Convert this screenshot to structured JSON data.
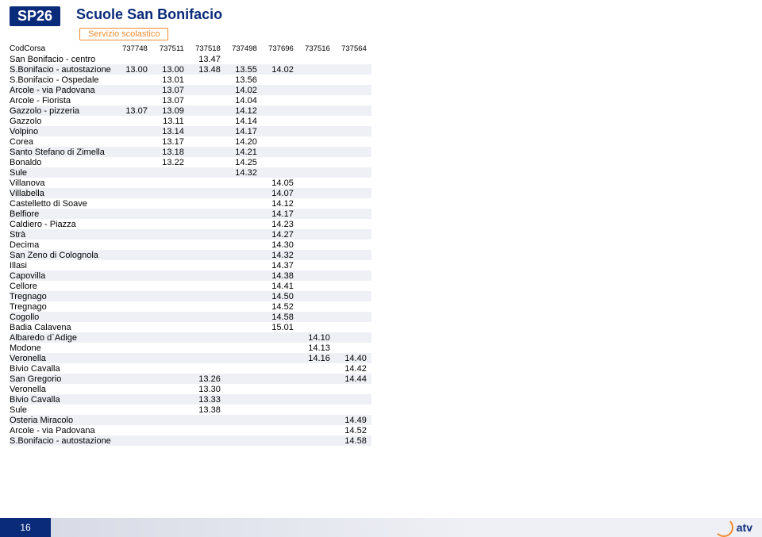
{
  "route_code": "SP26",
  "title": "Scuole San Bonifacio",
  "subtitle": "Servizio scolastico",
  "page_number": "16",
  "logo_text": "atv",
  "codcorsa_label": "CodCorsa",
  "runs": [
    "737748",
    "737511",
    "737518",
    "737498",
    "737696",
    "737516",
    "737564"
  ],
  "stops": [
    {
      "name": "San Bonifacio - centro",
      "t": [
        "",
        "",
        "13.47",
        "",
        "",
        "",
        ""
      ]
    },
    {
      "name": "S.Bonifacio - autostazione",
      "t": [
        "13.00",
        "13.00",
        "13.48",
        "13.55",
        "14.02",
        "",
        ""
      ]
    },
    {
      "name": "S.Bonifacio - Ospedale",
      "t": [
        "",
        "13.01",
        "",
        "13.56",
        "",
        "",
        ""
      ]
    },
    {
      "name": "Arcole - via Padovana",
      "t": [
        "",
        "13.07",
        "",
        "14.02",
        "",
        "",
        ""
      ]
    },
    {
      "name": "Arcole - Fiorista",
      "t": [
        "",
        "13.07",
        "",
        "14.04",
        "",
        "",
        ""
      ]
    },
    {
      "name": "Gazzolo - pizzeria",
      "t": [
        "13.07",
        "13.09",
        "",
        "14.12",
        "",
        "",
        ""
      ]
    },
    {
      "name": "Gazzolo",
      "t": [
        "",
        "13.11",
        "",
        "14.14",
        "",
        "",
        ""
      ]
    },
    {
      "name": "Volpino",
      "t": [
        "",
        "13.14",
        "",
        "14.17",
        "",
        "",
        ""
      ]
    },
    {
      "name": "Corea",
      "t": [
        "",
        "13.17",
        "",
        "14.20",
        "",
        "",
        ""
      ]
    },
    {
      "name": "Santo Stefano di Zimella",
      "t": [
        "",
        "13.18",
        "",
        "14.21",
        "",
        "",
        ""
      ]
    },
    {
      "name": "Bonaldo",
      "t": [
        "",
        "13.22",
        "",
        "14.25",
        "",
        "",
        ""
      ]
    },
    {
      "name": "Sule",
      "t": [
        "",
        "",
        "",
        "14.32",
        "",
        "",
        ""
      ]
    },
    {
      "name": "Villanova",
      "t": [
        "",
        "",
        "",
        "",
        "14.05",
        "",
        ""
      ]
    },
    {
      "name": "Villabella",
      "t": [
        "",
        "",
        "",
        "",
        "14.07",
        "",
        ""
      ]
    },
    {
      "name": "Castelletto di Soave",
      "t": [
        "",
        "",
        "",
        "",
        "14.12",
        "",
        ""
      ]
    },
    {
      "name": "Belfiore",
      "t": [
        "",
        "",
        "",
        "",
        "14.17",
        "",
        ""
      ]
    },
    {
      "name": "Caldiero - Piazza",
      "t": [
        "",
        "",
        "",
        "",
        "14.23",
        "",
        ""
      ]
    },
    {
      "name": "Strà",
      "t": [
        "",
        "",
        "",
        "",
        "14.27",
        "",
        ""
      ]
    },
    {
      "name": "Decima",
      "t": [
        "",
        "",
        "",
        "",
        "14.30",
        "",
        ""
      ]
    },
    {
      "name": "San Zeno di Colognola",
      "t": [
        "",
        "",
        "",
        "",
        "14.32",
        "",
        ""
      ]
    },
    {
      "name": "Illasi",
      "t": [
        "",
        "",
        "",
        "",
        "14.37",
        "",
        ""
      ]
    },
    {
      "name": "Capovilla",
      "t": [
        "",
        "",
        "",
        "",
        "14.38",
        "",
        ""
      ]
    },
    {
      "name": "Cellore",
      "t": [
        "",
        "",
        "",
        "",
        "14.41",
        "",
        ""
      ]
    },
    {
      "name": "Tregnago",
      "t": [
        "",
        "",
        "",
        "",
        "14.50",
        "",
        ""
      ]
    },
    {
      "name": "Tregnago",
      "t": [
        "",
        "",
        "",
        "",
        "14.52",
        "",
        ""
      ]
    },
    {
      "name": "Cogollo",
      "t": [
        "",
        "",
        "",
        "",
        "14.58",
        "",
        ""
      ]
    },
    {
      "name": "Badia Calavena",
      "t": [
        "",
        "",
        "",
        "",
        "15.01",
        "",
        ""
      ]
    },
    {
      "name": "Albaredo d`Adige",
      "t": [
        "",
        "",
        "",
        "",
        "",
        "14.10",
        ""
      ]
    },
    {
      "name": "Modone",
      "t": [
        "",
        "",
        "",
        "",
        "",
        "14.13",
        ""
      ]
    },
    {
      "name": "Veronella",
      "t": [
        "",
        "",
        "",
        "",
        "",
        "14.16",
        "14.40"
      ]
    },
    {
      "name": "Bivio Cavalla",
      "t": [
        "",
        "",
        "",
        "",
        "",
        "",
        "14.42"
      ]
    },
    {
      "name": "San Gregorio",
      "t": [
        "",
        "",
        "13.26",
        "",
        "",
        "",
        "14.44"
      ]
    },
    {
      "name": "Veronella",
      "t": [
        "",
        "",
        "13.30",
        "",
        "",
        "",
        ""
      ]
    },
    {
      "name": "Bivio Cavalla",
      "t": [
        "",
        "",
        "13.33",
        "",
        "",
        "",
        ""
      ]
    },
    {
      "name": "Sule",
      "t": [
        "",
        "",
        "13.38",
        "",
        "",
        "",
        ""
      ]
    },
    {
      "name": "Osteria Miracolo",
      "t": [
        "",
        "",
        "",
        "",
        "",
        "",
        "14.49"
      ]
    },
    {
      "name": "Arcole - via Padovana",
      "t": [
        "",
        "",
        "",
        "",
        "",
        "",
        "14.52"
      ]
    },
    {
      "name": "S.Bonifacio - autostazione",
      "t": [
        "",
        "",
        "",
        "",
        "",
        "",
        "14.58"
      ]
    }
  ]
}
